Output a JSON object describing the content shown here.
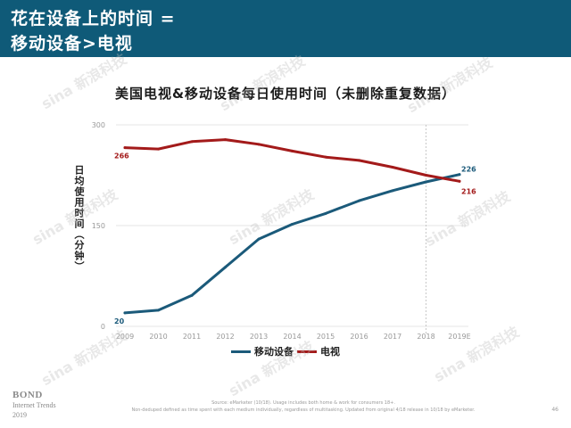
{
  "header": {
    "title_line1": "花在设备上的时间 =",
    "title_line2": "移动设备>电视"
  },
  "colors": {
    "header_bg": "#0f5a78",
    "mobile": "#1b5a7a",
    "tv": "#a31a1a",
    "grid": "#e6e6e6",
    "axis_text": "#999999"
  },
  "chart_data": {
    "type": "line",
    "title": "美国电视&移动设备每日使用时间（未删除重复数据）",
    "ylabel": "日均使用时间（分钟）",
    "xlabel": "",
    "x": [
      "2009",
      "2010",
      "2011",
      "2012",
      "2013",
      "2014",
      "2015",
      "2016",
      "2017",
      "2018",
      "2019E"
    ],
    "ylim": [
      0,
      300
    ],
    "yticks": [
      0,
      150,
      300
    ],
    "grid": true,
    "legend_position": "bottom",
    "series": [
      {
        "name": "移动设备",
        "color": "#1b5a7a",
        "values": [
          20,
          24,
          46,
          88,
          130,
          152,
          168,
          187,
          202,
          215,
          226
        ],
        "labels": {
          "first": "20",
          "last": "226"
        }
      },
      {
        "name": "电视",
        "color": "#a31a1a",
        "values": [
          266,
          264,
          275,
          278,
          271,
          261,
          252,
          247,
          237,
          225,
          216
        ],
        "labels": {
          "first": "266",
          "last": "216"
        }
      }
    ]
  },
  "footer": {
    "logo_line1": "BOND",
    "logo_line2": "Internet Trends",
    "logo_line3": "2019",
    "source_line1": "Source: eMarketer (10/18). Usage includes both home & work for consumers 18+.",
    "source_line2": "Non-deduped defined as time spent with each medium individually, regardless of multitasking. Updated from original 4/18 release in 10/18 by eMarketer.",
    "page_number": "46"
  },
  "watermark": "sina 新浪科技"
}
